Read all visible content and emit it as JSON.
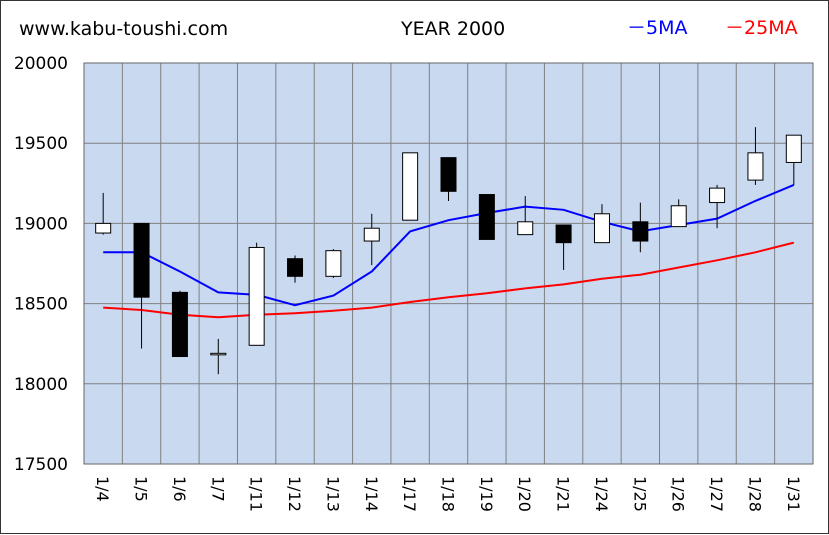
{
  "header": {
    "site": "www.kabu-toushi.com",
    "title": "YEAR 2000"
  },
  "chart_data": {
    "type": "candlestick",
    "title": "YEAR 2000",
    "ylim": [
      17500,
      20000
    ],
    "yticks": [
      17500,
      18000,
      18500,
      19000,
      19500,
      20000
    ],
    "grid": true,
    "legend_position": "top-right",
    "colors": {
      "plot_background": "#c9d9f0",
      "grid": "#808080",
      "ma5": "#0000ff",
      "ma25": "#ff0000",
      "up_candle": "#ffffff",
      "down_candle": "#000000"
    },
    "categories": [
      "1/4",
      "1/5",
      "1/6",
      "1/7",
      "1/11",
      "1/12",
      "1/13",
      "1/14",
      "1/17",
      "1/18",
      "1/19",
      "1/20",
      "1/21",
      "1/24",
      "1/25",
      "1/26",
      "1/27",
      "1/28",
      "1/31"
    ],
    "candles": [
      {
        "open": 18940,
        "high": 19190,
        "low": 18930,
        "close": 19000
      },
      {
        "open": 19000,
        "high": 19000,
        "low": 18220,
        "close": 18540
      },
      {
        "open": 18570,
        "high": 18580,
        "low": 18170,
        "close": 18170
      },
      {
        "open": 18190,
        "high": 18280,
        "low": 18060,
        "close": 18190
      },
      {
        "open": 18240,
        "high": 18880,
        "low": 18240,
        "close": 18850
      },
      {
        "open": 18780,
        "high": 18800,
        "low": 18630,
        "close": 18670
      },
      {
        "open": 18670,
        "high": 18840,
        "low": 18660,
        "close": 18830
      },
      {
        "open": 18890,
        "high": 19060,
        "low": 18740,
        "close": 18970
      },
      {
        "open": 19020,
        "high": 19440,
        "low": 19020,
        "close": 19440
      },
      {
        "open": 19410,
        "high": 19410,
        "low": 19140,
        "close": 19200
      },
      {
        "open": 19180,
        "high": 19180,
        "low": 18900,
        "close": 18900
      },
      {
        "open": 18930,
        "high": 19170,
        "low": 18930,
        "close": 19010
      },
      {
        "open": 18990,
        "high": 18990,
        "low": 18710,
        "close": 18880
      },
      {
        "open": 18880,
        "high": 19120,
        "low": 18880,
        "close": 19060
      },
      {
        "open": 19010,
        "high": 19130,
        "low": 18820,
        "close": 18890
      },
      {
        "open": 18980,
        "high": 19150,
        "low": 18980,
        "close": 19110
      },
      {
        "open": 19130,
        "high": 19240,
        "low": 18970,
        "close": 19220
      },
      {
        "open": 19270,
        "high": 19600,
        "low": 19240,
        "close": 19440
      },
      {
        "open": 19380,
        "high": 19550,
        "low": 19240,
        "close": 19550
      }
    ],
    "series": [
      {
        "name": "5MA",
        "values": [
          18820,
          18820,
          18700,
          18570,
          18555,
          18490,
          18550,
          18700,
          18950,
          19020,
          19065,
          19105,
          19085,
          19010,
          18950,
          18990,
          19030,
          19140,
          19240
        ]
      },
      {
        "name": "25MA",
        "values": [
          18475,
          18460,
          18430,
          18415,
          18430,
          18440,
          18455,
          18475,
          18510,
          18540,
          18565,
          18595,
          18620,
          18655,
          18680,
          18725,
          18770,
          18820,
          18880
        ]
      }
    ]
  }
}
